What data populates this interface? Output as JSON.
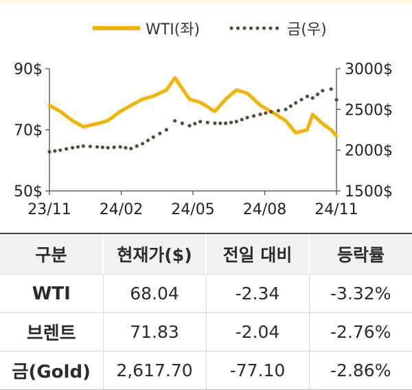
{
  "chart_data": {
    "type": "line",
    "x_ticks": [
      "23/11",
      "24/02",
      "24/05",
      "24/08",
      "24/11"
    ],
    "y_left": {
      "ticks": [
        "90$",
        "70$",
        "50$"
      ],
      "values": [
        90,
        70,
        50
      ],
      "range": [
        50,
        90
      ]
    },
    "y_right": {
      "ticks": [
        "3000$",
        "2500$",
        "2000$",
        "1500$"
      ],
      "values": [
        3000,
        2500,
        2000,
        1500
      ],
      "range": [
        1500,
        3000
      ]
    },
    "series": [
      {
        "name": "WTI(좌)",
        "axis": "left",
        "color": "#f5b300",
        "style": "solid",
        "x": [
          "2023-11-01",
          "2023-11-15",
          "2023-12-01",
          "2023-12-15",
          "2024-01-02",
          "2024-01-16",
          "2024-02-01",
          "2024-02-15",
          "2024-03-01",
          "2024-03-15",
          "2024-04-01",
          "2024-04-12",
          "2024-05-01",
          "2024-05-15",
          "2024-06-03",
          "2024-06-17",
          "2024-07-01",
          "2024-07-15",
          "2024-08-01",
          "2024-08-15",
          "2024-09-03",
          "2024-09-16",
          "2024-10-01",
          "2024-10-08",
          "2024-10-21",
          "2024-11-01",
          "2024-11-08"
        ],
        "values": [
          78,
          76,
          73,
          71,
          72,
          73,
          76,
          78,
          80,
          81,
          83,
          87,
          80,
          79,
          76,
          80,
          83,
          82,
          78,
          76,
          73,
          69,
          70,
          75,
          72,
          70,
          68
        ]
      },
      {
        "name": "금(우)",
        "axis": "right",
        "color": "#5a4a3a",
        "style": "dotted",
        "x": [
          "2023-11-01",
          "2023-11-15",
          "2023-12-01",
          "2023-12-15",
          "2024-01-02",
          "2024-01-16",
          "2024-02-01",
          "2024-02-15",
          "2024-03-01",
          "2024-03-15",
          "2024-04-01",
          "2024-04-12",
          "2024-05-01",
          "2024-05-15",
          "2024-06-03",
          "2024-06-17",
          "2024-07-01",
          "2024-07-15",
          "2024-08-01",
          "2024-08-15",
          "2024-09-03",
          "2024-09-16",
          "2024-10-01",
          "2024-10-08",
          "2024-10-21",
          "2024-11-01",
          "2024-11-08"
        ],
        "values": [
          1980,
          2000,
          2030,
          2050,
          2040,
          2030,
          2040,
          2020,
          2080,
          2160,
          2250,
          2360,
          2300,
          2350,
          2330,
          2330,
          2350,
          2400,
          2440,
          2470,
          2500,
          2580,
          2660,
          2640,
          2730,
          2750,
          2618
        ]
      }
    ],
    "legend": {
      "position": "top-center"
    }
  },
  "table": {
    "headers": [
      "구분",
      "현재가($)",
      "전일 대비",
      "등락률"
    ],
    "rows": [
      [
        "WTI",
        "68.04",
        "-2.34",
        "-3.32%"
      ],
      [
        "브렌트",
        "71.83",
        "-2.04",
        "-2.76%"
      ],
      [
        "금(Gold)",
        "2,617.70",
        "-77.10",
        "-2.86%"
      ]
    ]
  }
}
